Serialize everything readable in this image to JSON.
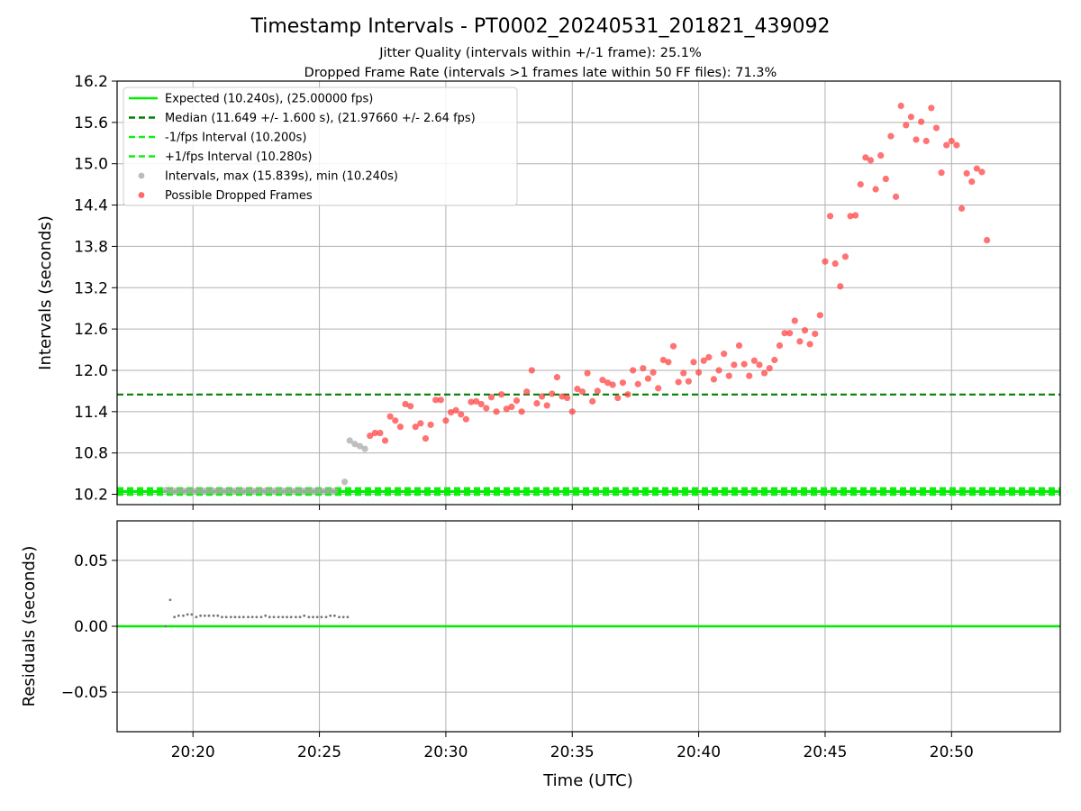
{
  "title": "Timestamp Intervals - PT0002_20240531_201821_439092",
  "subtitle1": "Jitter Quality (intervals within +/-1 frame): 25.1%",
  "subtitle2": "Dropped Frame Rate (intervals >1 frames late within 50 FF files): 71.3%",
  "colors": {
    "expected": "#00ee00",
    "median": "#008000",
    "fps_band": "#11ee11",
    "intervals": "#aaaaaa",
    "dropped": "#ff4444",
    "residual_points": "#777777",
    "grid": "#b0b0b0"
  },
  "chart_data": [
    {
      "type": "scatter",
      "ylabel": "Intervals (seconds)",
      "ylim": [
        10.05,
        16.2
      ],
      "yticks": [
        "10.2",
        "10.8",
        "11.4",
        "12.0",
        "12.6",
        "13.2",
        "13.8",
        "14.4",
        "15.0",
        "15.6",
        "16.2"
      ],
      "x_range_minutes": [
        "20:17",
        "20:54.3"
      ],
      "grid": true,
      "legend_position": "top-left",
      "reference_lines": [
        {
          "name": "Expected (10.240s), (25.00000 fps)",
          "y": 10.24,
          "style": "solid",
          "color": "#00ee00"
        },
        {
          "name": "Median (11.649 +/- 1.600 s), (21.97660 +/- 2.64 fps)",
          "y": 11.649,
          "style": "dashed",
          "color": "#008000"
        },
        {
          "name": "-1/fps Interval (10.200s)",
          "y": 10.2,
          "style": "dashed",
          "color": "#11ee11"
        },
        {
          "name": "+1/fps Interval (10.280s)",
          "y": 10.28,
          "style": "dashed",
          "color": "#11ee11"
        }
      ],
      "series": [
        {
          "name": "Intervals, max (15.839s), min (10.240s)",
          "color": "#aaaaaa",
          "points": [
            [
              "20:18:55",
              10.26
            ],
            [
              "20:19:06",
              10.25
            ],
            [
              "20:19:16",
              10.25
            ],
            [
              "20:19:26",
              10.25
            ],
            [
              "20:19:37",
              10.25
            ],
            [
              "20:19:47",
              10.25
            ],
            [
              "20:19:57",
              10.25
            ],
            [
              "20:20:08",
              10.25
            ],
            [
              "20:20:18",
              10.25
            ],
            [
              "20:20:28",
              10.25
            ],
            [
              "20:20:38",
              10.25
            ],
            [
              "20:20:49",
              10.25
            ],
            [
              "20:20:59",
              10.25
            ],
            [
              "20:21:09",
              10.25
            ],
            [
              "20:21:19",
              10.25
            ],
            [
              "20:21:30",
              10.25
            ],
            [
              "20:21:40",
              10.25
            ],
            [
              "20:21:50",
              10.25
            ],
            [
              "20:22:00",
              10.25
            ],
            [
              "20:22:11",
              10.25
            ],
            [
              "20:22:21",
              10.25
            ],
            [
              "20:22:31",
              10.25
            ],
            [
              "20:22:42",
              10.25
            ],
            [
              "20:22:52",
              10.25
            ],
            [
              "20:23:02",
              10.25
            ],
            [
              "20:23:12",
              10.25
            ],
            [
              "20:23:23",
              10.25
            ],
            [
              "20:23:33",
              10.25
            ],
            [
              "20:23:43",
              10.25
            ],
            [
              "20:23:53",
              10.25
            ],
            [
              "20:24:04",
              10.25
            ],
            [
              "20:24:14",
              10.25
            ],
            [
              "20:24:24",
              10.25
            ],
            [
              "20:24:35",
              10.25
            ],
            [
              "20:24:45",
              10.25
            ],
            [
              "20:24:55",
              10.25
            ],
            [
              "20:25:05",
              10.25
            ],
            [
              "20:25:16",
              10.25
            ],
            [
              "20:25:26",
              10.25
            ],
            [
              "20:25:36",
              10.25
            ],
            [
              "20:26:00",
              10.38
            ],
            [
              "20:26:12",
              10.98
            ],
            [
              "20:26:24",
              10.93
            ],
            [
              "20:26:36",
              10.9
            ],
            [
              "20:26:48",
              10.86
            ]
          ]
        },
        {
          "name": "Possible Dropped Frames",
          "color": "#ff4444",
          "points": [
            [
              "20:27:00",
              11.05
            ],
            [
              "20:27:12",
              11.09
            ],
            [
              "20:27:24",
              11.09
            ],
            [
              "20:27:36",
              10.98
            ],
            [
              "20:27:48",
              11.33
            ],
            [
              "20:28:00",
              11.27
            ],
            [
              "20:28:12",
              11.18
            ],
            [
              "20:28:24",
              11.51
            ],
            [
              "20:28:36",
              11.48
            ],
            [
              "20:28:48",
              11.18
            ],
            [
              "20:29:00",
              11.23
            ],
            [
              "20:29:12",
              11.01
            ],
            [
              "20:29:24",
              11.21
            ],
            [
              "20:29:36",
              11.57
            ],
            [
              "20:29:48",
              11.57
            ],
            [
              "20:30:00",
              11.27
            ],
            [
              "20:30:12",
              11.39
            ],
            [
              "20:30:24",
              11.42
            ],
            [
              "20:30:36",
              11.36
            ],
            [
              "20:30:48",
              11.29
            ],
            [
              "20:31:00",
              11.54
            ],
            [
              "20:31:12",
              11.55
            ],
            [
              "20:31:24",
              11.51
            ],
            [
              "20:31:36",
              11.45
            ],
            [
              "20:31:48",
              11.61
            ],
            [
              "20:32:00",
              11.4
            ],
            [
              "20:32:12",
              11.65
            ],
            [
              "20:32:24",
              11.44
            ],
            [
              "20:32:36",
              11.47
            ],
            [
              "20:32:48",
              11.56
            ],
            [
              "20:33:00",
              11.4
            ],
            [
              "20:33:12",
              11.69
            ],
            [
              "20:33:24",
              12.0
            ],
            [
              "20:33:36",
              11.52
            ],
            [
              "20:33:48",
              11.62
            ],
            [
              "20:34:00",
              11.49
            ],
            [
              "20:34:12",
              11.66
            ],
            [
              "20:34:24",
              11.9
            ],
            [
              "20:34:36",
              11.62
            ],
            [
              "20:34:48",
              11.6
            ],
            [
              "20:35:00",
              11.4
            ],
            [
              "20:35:12",
              11.73
            ],
            [
              "20:35:24",
              11.69
            ],
            [
              "20:35:36",
              11.96
            ],
            [
              "20:35:48",
              11.55
            ],
            [
              "20:36:00",
              11.7
            ],
            [
              "20:36:12",
              11.86
            ],
            [
              "20:36:24",
              11.82
            ],
            [
              "20:36:36",
              11.79
            ],
            [
              "20:36:48",
              11.6
            ],
            [
              "20:37:00",
              11.82
            ],
            [
              "20:37:12",
              11.65
            ],
            [
              "20:37:24",
              12.0
            ],
            [
              "20:37:36",
              11.8
            ],
            [
              "20:37:48",
              12.03
            ],
            [
              "20:38:00",
              11.88
            ],
            [
              "20:38:12",
              11.97
            ],
            [
              "20:38:24",
              11.74
            ],
            [
              "20:38:36",
              12.15
            ],
            [
              "20:38:48",
              12.12
            ],
            [
              "20:39:00",
              12.35
            ],
            [
              "20:39:12",
              11.83
            ],
            [
              "20:39:24",
              11.96
            ],
            [
              "20:39:36",
              11.84
            ],
            [
              "20:39:48",
              12.12
            ],
            [
              "20:40:00",
              11.97
            ],
            [
              "20:40:12",
              12.14
            ],
            [
              "20:40:24",
              12.19
            ],
            [
              "20:40:36",
              11.87
            ],
            [
              "20:40:48",
              12.0
            ],
            [
              "20:41:00",
              12.24
            ],
            [
              "20:41:12",
              11.92
            ],
            [
              "20:41:24",
              12.08
            ],
            [
              "20:41:36",
              12.36
            ],
            [
              "20:41:48",
              12.09
            ],
            [
              "20:42:00",
              11.92
            ],
            [
              "20:42:12",
              12.14
            ],
            [
              "20:42:24",
              12.08
            ],
            [
              "20:42:36",
              11.96
            ],
            [
              "20:42:48",
              12.03
            ],
            [
              "20:43:00",
              12.15
            ],
            [
              "20:43:12",
              12.36
            ],
            [
              "20:43:24",
              12.54
            ],
            [
              "20:43:36",
              12.54
            ],
            [
              "20:43:48",
              12.72
            ],
            [
              "20:44:00",
              12.42
            ],
            [
              "20:44:12",
              12.58
            ],
            [
              "20:44:24",
              12.38
            ],
            [
              "20:44:36",
              12.53
            ],
            [
              "20:44:48",
              12.8
            ],
            [
              "20:45:00",
              13.58
            ],
            [
              "20:45:12",
              14.24
            ],
            [
              "20:45:24",
              13.55
            ],
            [
              "20:45:36",
              13.22
            ],
            [
              "20:45:48",
              13.65
            ],
            [
              "20:46:00",
              14.24
            ],
            [
              "20:46:12",
              14.25
            ],
            [
              "20:46:24",
              14.7
            ],
            [
              "20:46:36",
              15.09
            ],
            [
              "20:46:48",
              15.05
            ],
            [
              "20:47:00",
              14.63
            ],
            [
              "20:47:12",
              15.12
            ],
            [
              "20:47:24",
              14.78
            ],
            [
              "20:47:36",
              15.4
            ],
            [
              "20:47:48",
              14.52
            ],
            [
              "20:48:00",
              15.84
            ],
            [
              "20:48:12",
              15.56
            ],
            [
              "20:48:24",
              15.68
            ],
            [
              "20:48:36",
              15.35
            ],
            [
              "20:48:48",
              15.61
            ],
            [
              "20:49:00",
              15.33
            ],
            [
              "20:49:12",
              15.81
            ],
            [
              "20:49:24",
              15.52
            ],
            [
              "20:49:36",
              14.87
            ],
            [
              "20:49:48",
              15.27
            ],
            [
              "20:50:00",
              15.33
            ],
            [
              "20:50:12",
              15.27
            ],
            [
              "20:50:24",
              14.35
            ],
            [
              "20:50:36",
              14.86
            ],
            [
              "20:50:48",
              14.74
            ],
            [
              "20:51:00",
              14.93
            ],
            [
              "20:51:12",
              14.88
            ],
            [
              "20:51:24",
              13.89
            ]
          ]
        }
      ]
    },
    {
      "type": "scatter",
      "xlabel": "Time (UTC)",
      "ylabel": "Residuals (seconds)",
      "ylim": [
        -0.08,
        0.08
      ],
      "yticks": [
        "0.05",
        "0.00",
        "−0.05"
      ],
      "xticks": [
        "20:20",
        "20:25",
        "20:30",
        "20:35",
        "20:40",
        "20:45",
        "20:50"
      ],
      "grid": true,
      "reference_lines": [
        {
          "y": 0.0,
          "style": "solid",
          "color": "#00ee00"
        }
      ],
      "series": [
        {
          "name": "",
          "color": "#777777",
          "points": [
            [
              "20:18:55",
              0.0
            ],
            [
              "20:19:06",
              0.02
            ],
            [
              "20:19:16",
              0.007
            ],
            [
              "20:19:26",
              0.008
            ],
            [
              "20:19:37",
              0.008
            ],
            [
              "20:19:47",
              0.009
            ],
            [
              "20:19:57",
              0.009
            ],
            [
              "20:20:08",
              0.007
            ],
            [
              "20:20:18",
              0.008
            ],
            [
              "20:20:28",
              0.008
            ],
            [
              "20:20:38",
              0.008
            ],
            [
              "20:20:49",
              0.008
            ],
            [
              "20:20:59",
              0.008
            ],
            [
              "20:21:09",
              0.007
            ],
            [
              "20:21:19",
              0.007
            ],
            [
              "20:21:30",
              0.007
            ],
            [
              "20:21:40",
              0.007
            ],
            [
              "20:21:50",
              0.007
            ],
            [
              "20:22:00",
              0.007
            ],
            [
              "20:22:11",
              0.007
            ],
            [
              "20:22:21",
              0.007
            ],
            [
              "20:22:31",
              0.007
            ],
            [
              "20:22:42",
              0.007
            ],
            [
              "20:22:52",
              0.008
            ],
            [
              "20:23:02",
              0.007
            ],
            [
              "20:23:12",
              0.007
            ],
            [
              "20:23:23",
              0.007
            ],
            [
              "20:23:33",
              0.007
            ],
            [
              "20:23:43",
              0.007
            ],
            [
              "20:23:53",
              0.007
            ],
            [
              "20:24:04",
              0.007
            ],
            [
              "20:24:14",
              0.007
            ],
            [
              "20:24:24",
              0.008
            ],
            [
              "20:24:35",
              0.007
            ],
            [
              "20:24:45",
              0.007
            ],
            [
              "20:24:55",
              0.007
            ],
            [
              "20:25:05",
              0.007
            ],
            [
              "20:25:16",
              0.007
            ],
            [
              "20:25:26",
              0.008
            ],
            [
              "20:25:36",
              0.008
            ],
            [
              "20:25:47",
              0.007
            ],
            [
              "20:25:57",
              0.007
            ],
            [
              "20:26:07",
              0.007
            ]
          ]
        }
      ]
    }
  ]
}
